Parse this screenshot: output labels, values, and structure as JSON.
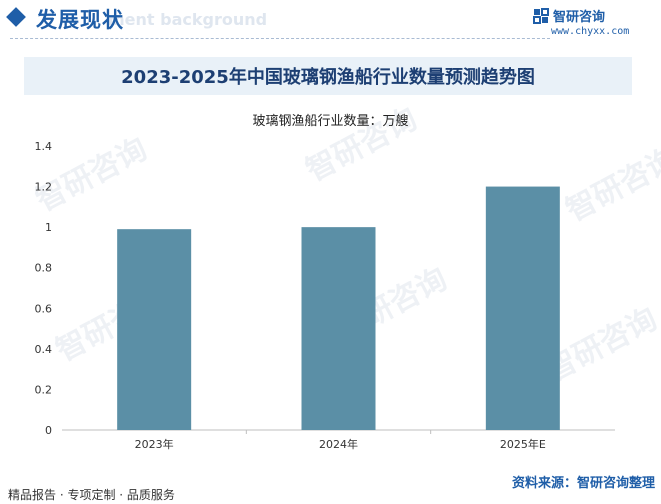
{
  "header": {
    "section_title": "发展现状",
    "section_subtitle": "ment background",
    "brand_name": "智研咨询",
    "brand_url": "www.chyxx.com",
    "brand_logo_icon": "chyxx-logo-icon"
  },
  "watermark": {
    "text": "智研咨询"
  },
  "chart_data": {
    "type": "bar",
    "title": "2023-2025年中国玻璃钢渔船行业数量预测趋势图",
    "subtitle": "玻璃钢渔船行业数量：万艘",
    "categories": [
      "2023年",
      "2024年",
      "2025年E"
    ],
    "values": [
      0.99,
      1.0,
      1.2
    ],
    "ylim": [
      0,
      1.4
    ],
    "yticks": [
      "1.4",
      "1.2",
      "1",
      "0.8",
      "0.6",
      "0.4",
      "0.2",
      "0"
    ],
    "ytick_values": [
      1.4,
      1.2,
      1.0,
      0.8,
      0.6,
      0.4,
      0.2,
      0
    ],
    "grid": false,
    "bar_color": "#5b8fa6"
  },
  "footer": {
    "left": "精品报告 · 专项定制 · 品质服务",
    "right": "资料来源：智研咨询整理"
  }
}
